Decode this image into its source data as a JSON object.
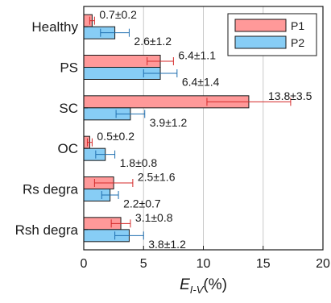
{
  "chart_data": {
    "type": "bar",
    "orientation": "horizontal",
    "categories": [
      "Healthy",
      "PS",
      "SC",
      "OC",
      "Rs degra",
      "Rsh degra"
    ],
    "series": [
      {
        "name": "P1",
        "color": "#ff9999",
        "values": [
          0.7,
          6.4,
          13.8,
          0.5,
          2.5,
          3.1
        ],
        "errors": [
          0.2,
          1.1,
          3.5,
          0.2,
          1.6,
          0.8
        ],
        "labels": [
          "0.7±0.2",
          "6.4±1.1",
          "13.8±3.5",
          "0.5±0.2",
          "2.5±1.6",
          "3.1±0.8"
        ],
        "error_color": "#d42a2a"
      },
      {
        "name": "P2",
        "color": "#87cdf5",
        "values": [
          2.6,
          6.4,
          3.9,
          1.8,
          2.2,
          3.8
        ],
        "errors": [
          1.2,
          1.4,
          1.2,
          0.8,
          0.7,
          1.2
        ],
        "labels": [
          "2.6±1.2",
          "6.4±1.4",
          "3.9±1.2",
          "1.8±0.8",
          "2.2±0.7",
          "3.8±1.2"
        ],
        "error_color": "#1f6fb0"
      }
    ],
    "xlim": [
      0,
      20
    ],
    "xticks": [
      "0",
      "5",
      "10",
      "15",
      "20"
    ],
    "xlabel_main": "E",
    "xlabel_sub": "I-V",
    "xlabel_unit": "(%)",
    "ylabel": "",
    "grid": "vertical",
    "legend_position": "top-right"
  }
}
